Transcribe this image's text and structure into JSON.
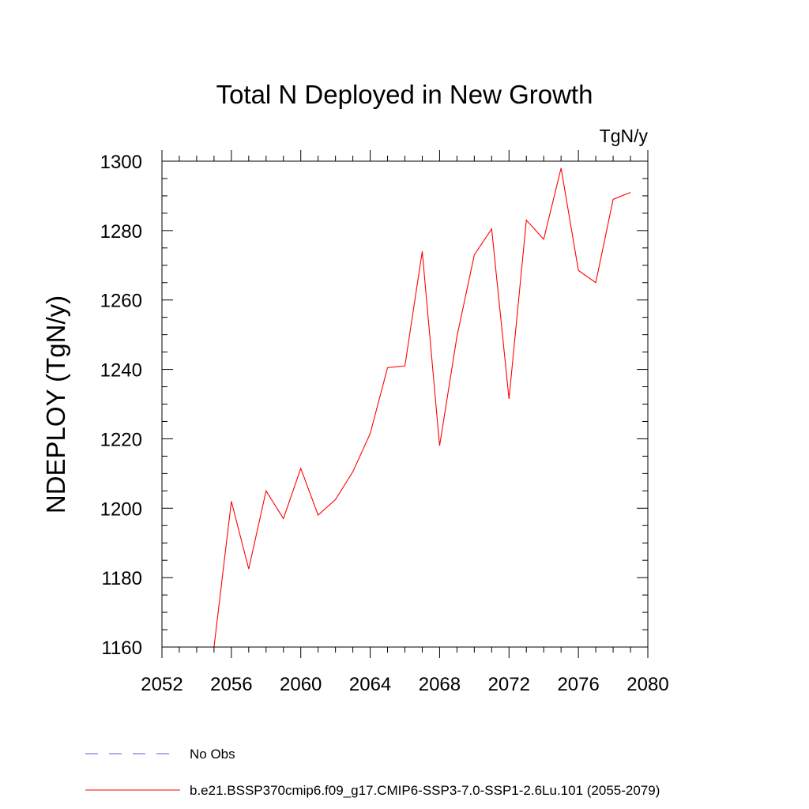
{
  "chart_data": {
    "type": "line",
    "title": "Total N Deployed in New Growth",
    "units_label": "TgN/y",
    "ylabel": "NDEPLOY  (TgN/y)",
    "xlabel": "",
    "xlim": [
      2052,
      2080
    ],
    "ylim": [
      1160,
      1300
    ],
    "x_ticks": [
      2052,
      2056,
      2060,
      2064,
      2068,
      2072,
      2076,
      2080
    ],
    "x_tick_labels": [
      "2052",
      "2056",
      "2060",
      "2064",
      "2068",
      "2072",
      "2076",
      "2080"
    ],
    "y_ticks": [
      1160,
      1180,
      1200,
      1220,
      1240,
      1260,
      1280,
      1300
    ],
    "y_tick_labels": [
      "1160",
      "1180",
      "1200",
      "1220",
      "1240",
      "1260",
      "1280",
      "1300"
    ],
    "grid": false,
    "legend_position": "bottom",
    "series": [
      {
        "name": "No Obs",
        "color": "#6a5acd",
        "dash": "dashed",
        "x": [],
        "y": []
      },
      {
        "name": "b.e21.BSSP370cmip6.f09_g17.CMIP6-SSP3-7.0-SSP1-2.6Lu.101 (2055-2079)",
        "color": "#ff0000",
        "dash": "solid",
        "x": [
          2055,
          2056,
          2057,
          2058,
          2059,
          2060,
          2061,
          2062,
          2063,
          2064,
          2065,
          2066,
          2067,
          2068,
          2069,
          2070,
          2071,
          2072,
          2073,
          2074,
          2075,
          2076,
          2077,
          2078,
          2079
        ],
        "y": [
          1160,
          1202,
          1182.5,
          1205,
          1197,
          1211.5,
          1198,
          1202.5,
          1210.5,
          1221.5,
          1240.5,
          1241,
          1274,
          1218,
          1249.5,
          1273,
          1280.5,
          1231.5,
          1283,
          1277.5,
          1298,
          1268.5,
          1265,
          1289,
          1291
        ]
      }
    ]
  }
}
